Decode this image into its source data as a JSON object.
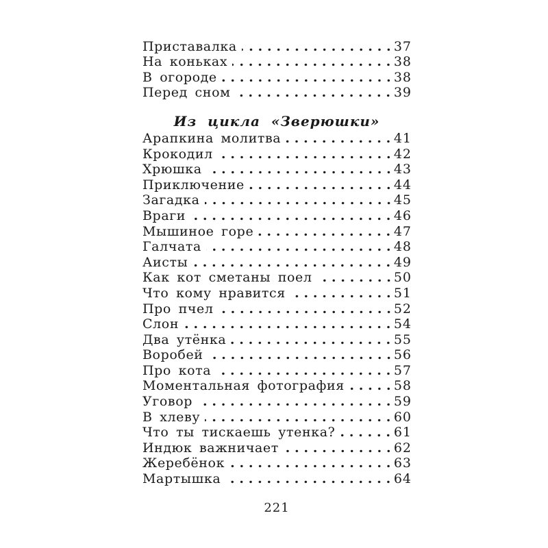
{
  "book_page": {
    "folio_page_number": "221",
    "toc": {
      "top_entries": [
        {
          "title": "Приставалка",
          "page": "37"
        },
        {
          "title": "На коньках",
          "page": "38"
        },
        {
          "title": "В огороде",
          "page": "38"
        },
        {
          "title": "Перед сном",
          "page": "39"
        }
      ],
      "section": {
        "header": "Из цикла «Зверюшки»",
        "entries": [
          {
            "title": "Арапкина молитва",
            "page": "41"
          },
          {
            "title": "Крокодил",
            "page": "42"
          },
          {
            "title": "Хрюшка",
            "page": "43"
          },
          {
            "title": "Приключение",
            "page": "44"
          },
          {
            "title": "Загадка",
            "page": "45"
          },
          {
            "title": "Враги",
            "page": "46"
          },
          {
            "title": "Мышиное горе",
            "page": "47"
          },
          {
            "title": "Галчата",
            "page": "48"
          },
          {
            "title": "Аисты",
            "page": "49"
          },
          {
            "title": "Как кот сметаны поел",
            "page": "50"
          },
          {
            "title": "Что кому нравится",
            "page": "51"
          },
          {
            "title": "Про пчел",
            "page": "52"
          },
          {
            "title": "Слон",
            "page": "54"
          },
          {
            "title": "Два утёнка",
            "page": "55"
          },
          {
            "title": "Воробей",
            "page": "56"
          },
          {
            "title": "Про кота",
            "page": "57"
          },
          {
            "title": "Моментальная фотография",
            "page": "58"
          },
          {
            "title": "Уговор",
            "page": "59"
          },
          {
            "title": "В хлеву",
            "page": "60"
          },
          {
            "title": "Что ты тискаешь утенка?",
            "page": "61"
          },
          {
            "title": "Индюк важничает",
            "page": "62"
          },
          {
            "title": "Жеребёнок",
            "page": "63"
          },
          {
            "title": "Мартышка",
            "page": "64"
          }
        ]
      }
    }
  }
}
